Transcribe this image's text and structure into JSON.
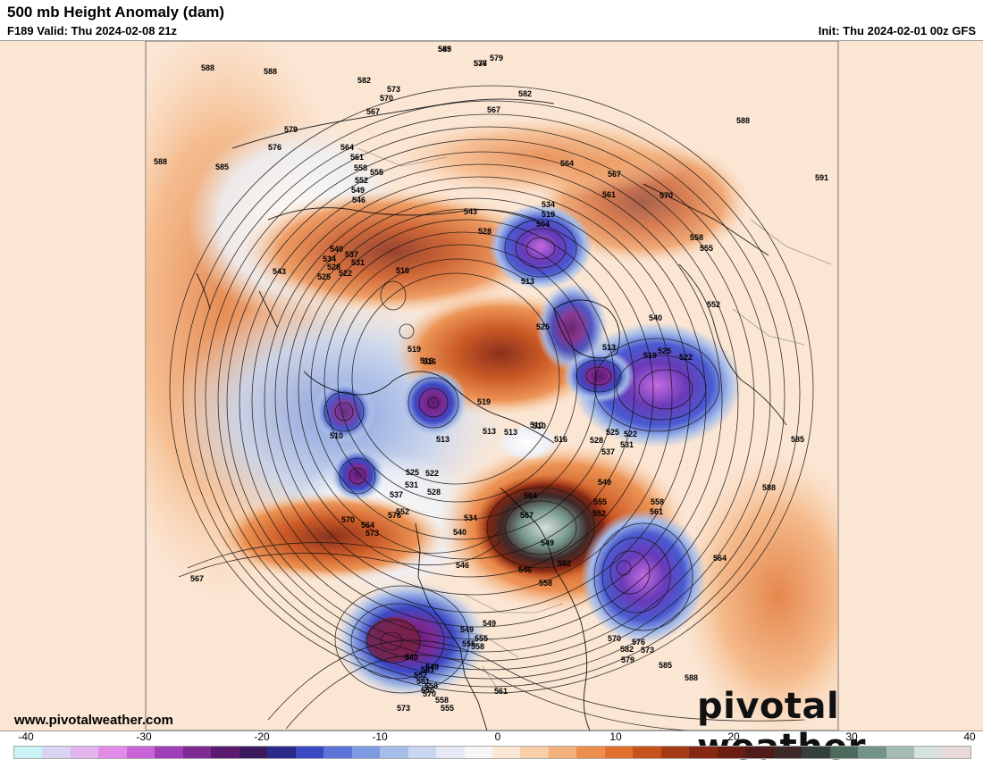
{
  "header": {
    "title": "500 mb Height Anomaly (dam)",
    "valid": "F189 Valid: Thu 2024-02-08 21z",
    "init": "Init: Thu 2024-02-01 00z GFS"
  },
  "footer": {
    "url": "www.pivotalweather.com",
    "logo": "pivotal weather"
  },
  "colorbar": {
    "ticks": [
      "-40",
      "-30",
      "-20",
      "-10",
      "0",
      "10",
      "20",
      "30",
      "40"
    ],
    "colors": [
      "#c9f2f7",
      "#d8d4f2",
      "#e2b4ee",
      "#e08ce6",
      "#c964d6",
      "#a040b8",
      "#7d2a93",
      "#5a1a6e",
      "#3c1a5e",
      "#2a2a8a",
      "#3a48c4",
      "#5a74d8",
      "#7d9be2",
      "#a6bde9",
      "#c8d6ef",
      "#e4e9f3",
      "#f6f6f6",
      "#fbe6d4",
      "#f8cfa8",
      "#f3b07a",
      "#ec8f4e",
      "#e0702c",
      "#c8521c",
      "#a63a16",
      "#852712",
      "#6a1e14",
      "#4e1a1a",
      "#3e2828",
      "#36403a",
      "#4e6a5c",
      "#74948a",
      "#a4bcb4",
      "#d6e0dc",
      "#e8d8d8"
    ]
  },
  "height_labels": [
    "585",
    "576",
    "579",
    "582",
    "588",
    "588",
    "582",
    "573",
    "570",
    "567",
    "567",
    "588",
    "579",
    "576",
    "564",
    "561",
    "558",
    "555",
    "552",
    "549",
    "546",
    "543",
    "528",
    "564",
    "567",
    "561",
    "570",
    "591",
    "588",
    "585",
    "534",
    "519",
    "504",
    "540",
    "537",
    "534",
    "531",
    "528",
    "522",
    "525",
    "516",
    "543",
    "558",
    "555",
    "513",
    "552",
    "540",
    "525",
    "522",
    "519",
    "516",
    "513",
    "525",
    "519",
    "510",
    "513",
    "522",
    "516",
    "510",
    "513",
    "525",
    "522",
    "531",
    "528",
    "537",
    "519",
    "516",
    "510",
    "513",
    "525",
    "531",
    "537",
    "528",
    "534",
    "540",
    "549",
    "555",
    "552",
    "558",
    "561",
    "546",
    "549",
    "555",
    "558",
    "561",
    "555",
    "549",
    "546",
    "549",
    "552",
    "558",
    "564",
    "567",
    "570",
    "576",
    "573",
    "579",
    "582",
    "585",
    "588",
    "585",
    "588",
    "567",
    "570",
    "564",
    "573",
    "576",
    "540",
    "549",
    "552",
    "555",
    "558",
    "561",
    "564",
    "573",
    "570",
    "558",
    "555",
    "561",
    "552",
    "549",
    "537"
  ]
}
